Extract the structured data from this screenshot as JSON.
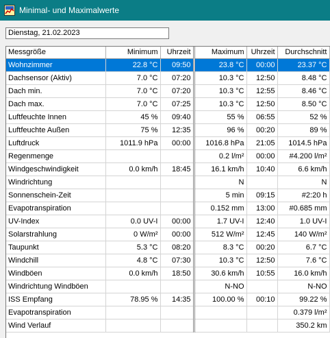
{
  "window": {
    "title": "Minimal- und Maximalwerte",
    "icon": "app-chart-icon"
  },
  "date_field": {
    "value": "Dienstag, 21.02.2023"
  },
  "colors": {
    "titlebar": "#0b7d86",
    "selection": "#0078d7"
  },
  "table": {
    "headers": {
      "measure": "Messgröße",
      "min": "Minimum",
      "min_time": "Uhrzeit",
      "max": "Maximum",
      "max_time": "Uhrzeit",
      "avg": "Durchschnitt"
    },
    "selected_index": 0,
    "rows": [
      {
        "name": "Wohnzimmer",
        "min": "22.8 °C",
        "min_time": "09:50",
        "max": "23.8 °C",
        "max_time": "00:00",
        "avg": "23.37 °C"
      },
      {
        "name": "Dachsensor (Aktiv)",
        "min": "7.0 °C",
        "min_time": "07:20",
        "max": "10.3 °C",
        "max_time": "12:50",
        "avg": "8.48 °C"
      },
      {
        "name": "Dach min.",
        "min": "7.0 °C",
        "min_time": "07:20",
        "max": "10.3 °C",
        "max_time": "12:55",
        "avg": "8.46 °C"
      },
      {
        "name": "Dach max.",
        "min": "7.0 °C",
        "min_time": "07:25",
        "max": "10.3 °C",
        "max_time": "12:50",
        "avg": "8.50 °C"
      },
      {
        "name": "Luftfeuchte Innen",
        "min": "45 %",
        "min_time": "09:40",
        "max": "55 %",
        "max_time": "06:55",
        "avg": "52 %"
      },
      {
        "name": "Luftfeuchte Außen",
        "min": "75 %",
        "min_time": "12:35",
        "max": "96 %",
        "max_time": "00:20",
        "avg": "89 %"
      },
      {
        "name": "Luftdruck",
        "min": "1011.9 hPa",
        "min_time": "00:00",
        "max": "1016.8 hPa",
        "max_time": "21:05",
        "avg": "1014.5 hPa"
      },
      {
        "name": "Regenmenge",
        "min": "",
        "min_time": "",
        "max": "0.2 l/m²",
        "max_time": "00:00",
        "avg": "#4.200 l/m²"
      },
      {
        "name": "Windgeschwindigkeit",
        "min": "0.0 km/h",
        "min_time": "18:45",
        "max": "16.1 km/h",
        "max_time": "10:40",
        "avg": "6.6 km/h"
      },
      {
        "name": "Windrichtung",
        "min": "",
        "min_time": "",
        "max": "N",
        "max_time": "",
        "avg": "N"
      },
      {
        "name": "Sonnenschein-Zeit",
        "min": "",
        "min_time": "",
        "max": "5 min",
        "max_time": "09:15",
        "avg": "#2:20 h"
      },
      {
        "name": "Evapotranspiration",
        "min": "",
        "min_time": "",
        "max": "0.152 mm",
        "max_time": "13:00",
        "avg": "#0.685 mm"
      },
      {
        "name": "UV-Index",
        "min": "0.0 UV-I",
        "min_time": "00:00",
        "max": "1.7 UV-I",
        "max_time": "12:40",
        "avg": "1.0 UV-I"
      },
      {
        "name": "Solarstrahlung",
        "min": "0 W/m²",
        "min_time": "00:00",
        "max": "512 W/m²",
        "max_time": "12:45",
        "avg": "140 W/m²"
      },
      {
        "name": "Taupunkt",
        "min": "5.3 °C",
        "min_time": "08:20",
        "max": "8.3 °C",
        "max_time": "00:20",
        "avg": "6.7 °C"
      },
      {
        "name": "Windchill",
        "min": "4.8 °C",
        "min_time": "07:30",
        "max": "10.3 °C",
        "max_time": "12:50",
        "avg": "7.6 °C"
      },
      {
        "name": "Windböen",
        "min": "0.0 km/h",
        "min_time": "18:50",
        "max": "30.6 km/h",
        "max_time": "10:55",
        "avg": "16.0 km/h"
      },
      {
        "name": "Windrichtung Windböen",
        "min": "",
        "min_time": "",
        "max": "N-NO",
        "max_time": "",
        "avg": "N-NO"
      },
      {
        "name": "ISS Empfang",
        "min": "78.95 %",
        "min_time": "14:35",
        "max": "100.00 %",
        "max_time": "00:10",
        "avg": "99.22 %"
      },
      {
        "name": "Evapotranspiration",
        "min": "",
        "min_time": "",
        "max": "",
        "max_time": "",
        "avg": "0.379 l/m²"
      },
      {
        "name": "Wind Verlauf",
        "min": "",
        "min_time": "",
        "max": "",
        "max_time": "",
        "avg": "350.2 km"
      }
    ]
  }
}
